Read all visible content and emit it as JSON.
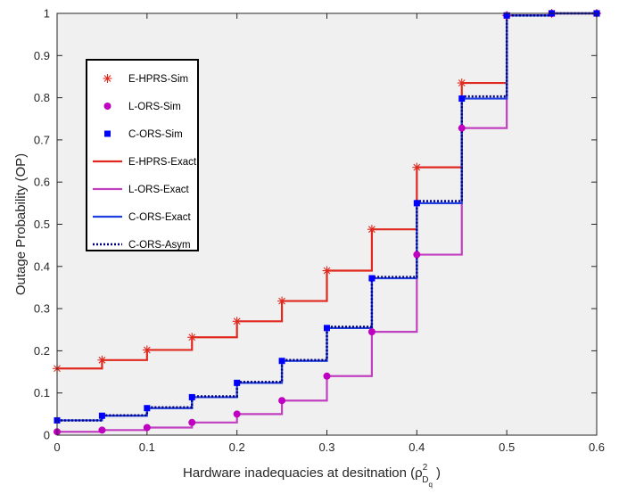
{
  "chart_data": {
    "type": "line",
    "step": "post",
    "xlabel_main": "Hardware inadequacies at desitnation (",
    "xlabel_symbol": "ρ",
    "xlabel_sup": "2",
    "xlabel_sub": "D",
    "xlabel_subsub": "q",
    "xlabel_close": ")",
    "ylabel": "Outage Probability (OP)",
    "xlim": [
      0,
      0.6
    ],
    "ylim": [
      0,
      1
    ],
    "xticks": [
      0,
      0.1,
      0.2,
      0.3,
      0.4,
      0.5,
      0.6
    ],
    "xtick_labels": [
      "0",
      "0.1",
      "0.2",
      "0.3",
      "0.4",
      "0.5",
      "0.6"
    ],
    "yticks": [
      0,
      0.1,
      0.2,
      0.3,
      0.4,
      0.5,
      0.6,
      0.7,
      0.8,
      0.9,
      1
    ],
    "ytick_labels": [
      "0",
      "0.1",
      "0.2",
      "0.3",
      "0.4",
      "0.5",
      "0.6",
      "0.7",
      "0.8",
      "0.9",
      "1"
    ],
    "background": "#f0f0f0",
    "legend_position": "upper-left",
    "x": [
      0,
      0.05,
      0.1,
      0.15,
      0.2,
      0.25,
      0.3,
      0.35,
      0.4,
      0.45,
      0.5,
      0.55,
      0.6
    ],
    "series": [
      {
        "name": "E-HPRS-Sim",
        "kind": "marker",
        "marker": "asterisk",
        "color": "#e0281e",
        "values": [
          0.158,
          0.178,
          0.202,
          0.232,
          0.27,
          0.318,
          0.39,
          0.488,
          0.635,
          0.835,
          0.995,
          1.0,
          1.0
        ]
      },
      {
        "name": "L-ORS-Sim",
        "kind": "marker",
        "marker": "circle",
        "color": "#c000c0",
        "values": [
          0.008,
          0.012,
          0.018,
          0.03,
          0.05,
          0.082,
          0.14,
          0.245,
          0.428,
          0.728,
          0.995,
          1.0,
          1.0
        ]
      },
      {
        "name": "C-ORS-Sim",
        "kind": "marker",
        "marker": "square",
        "color": "#0000ff",
        "values": [
          0.035,
          0.046,
          0.064,
          0.09,
          0.124,
          0.176,
          0.254,
          0.372,
          0.55,
          0.798,
          0.995,
          1.0,
          1.0
        ]
      },
      {
        "name": "E-HPRS-Exact",
        "kind": "line",
        "style": "solid",
        "color": "#e0281e",
        "values": [
          0.158,
          0.178,
          0.202,
          0.232,
          0.27,
          0.318,
          0.39,
          0.488,
          0.635,
          0.835,
          0.995,
          1.0,
          1.0
        ]
      },
      {
        "name": "L-ORS-Exact",
        "kind": "line",
        "style": "solid",
        "color": "#c040c0",
        "values": [
          0.008,
          0.012,
          0.018,
          0.03,
          0.05,
          0.082,
          0.14,
          0.245,
          0.428,
          0.728,
          0.995,
          1.0,
          1.0
        ]
      },
      {
        "name": "C-ORS-Exact",
        "kind": "line",
        "style": "solid",
        "color": "#1f3fe0",
        "values": [
          0.035,
          0.046,
          0.064,
          0.09,
          0.124,
          0.176,
          0.254,
          0.372,
          0.55,
          0.798,
          0.995,
          1.0,
          1.0
        ]
      },
      {
        "name": "C-ORS-Asym",
        "kind": "line",
        "style": "dotted",
        "color": "#00007f",
        "values": [
          0.035,
          0.047,
          0.066,
          0.092,
          0.126,
          0.178,
          0.257,
          0.375,
          0.555,
          0.803,
          0.995,
          1.0,
          1.0
        ]
      }
    ]
  }
}
